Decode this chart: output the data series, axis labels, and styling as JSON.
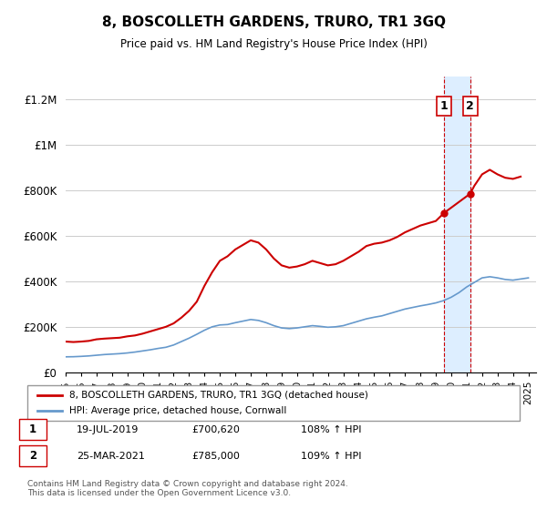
{
  "title": "8, BOSCOLLETH GARDENS, TRURO, TR1 3GQ",
  "subtitle": "Price paid vs. HM Land Registry's House Price Index (HPI)",
  "ylabel_ticks": [
    "£0",
    "£200K",
    "£400K",
    "£600K",
    "£800K",
    "£1M",
    "£1.2M"
  ],
  "ytick_values": [
    0,
    200000,
    400000,
    600000,
    800000,
    1000000,
    1200000
  ],
  "ylim": [
    0,
    1300000
  ],
  "xlim_start": 1995.0,
  "xlim_end": 2025.5,
  "red_line_color": "#cc0000",
  "blue_line_color": "#6699cc",
  "highlight_color": "#ddeeff",
  "marker_color": "#cc0000",
  "purchase1_x": 2019.54,
  "purchase1_y": 700620,
  "purchase2_x": 2021.23,
  "purchase2_y": 785000,
  "legend_label_red": "8, BOSCOLLETH GARDENS, TRURO, TR1 3GQ (detached house)",
  "legend_label_blue": "HPI: Average price, detached house, Cornwall",
  "annotation1_label": "1",
  "annotation2_label": "2",
  "table_row1": "1    19-JUL-2019    £700,620    108% ↑ HPI",
  "table_row2": "2    25-MAR-2021    £785,000    109% ↑ HPI",
  "footnote": "Contains HM Land Registry data © Crown copyright and database right 2024.\nThis data is licensed under the Open Government Licence v3.0.",
  "red_x": [
    1995.0,
    1995.5,
    1996.0,
    1996.5,
    1997.0,
    1997.5,
    1998.0,
    1998.5,
    1999.0,
    1999.5,
    2000.0,
    2000.5,
    2001.0,
    2001.5,
    2002.0,
    2002.5,
    2003.0,
    2003.5,
    2004.0,
    2004.5,
    2005.0,
    2005.5,
    2006.0,
    2006.5,
    2007.0,
    2007.5,
    2008.0,
    2008.5,
    2009.0,
    2009.5,
    2010.0,
    2010.5,
    2011.0,
    2011.5,
    2012.0,
    2012.5,
    2013.0,
    2013.5,
    2014.0,
    2014.5,
    2015.0,
    2015.5,
    2016.0,
    2016.5,
    2017.0,
    2017.5,
    2018.0,
    2018.5,
    2019.0,
    2019.54,
    2021.23,
    2021.5,
    2022.0,
    2022.5,
    2023.0,
    2023.5,
    2024.0,
    2024.5
  ],
  "red_y": [
    135000,
    133000,
    135000,
    138000,
    145000,
    148000,
    150000,
    152000,
    158000,
    162000,
    170000,
    180000,
    190000,
    200000,
    215000,
    240000,
    270000,
    310000,
    380000,
    440000,
    490000,
    510000,
    540000,
    560000,
    580000,
    570000,
    540000,
    500000,
    470000,
    460000,
    465000,
    475000,
    490000,
    480000,
    470000,
    475000,
    490000,
    510000,
    530000,
    555000,
    565000,
    570000,
    580000,
    595000,
    615000,
    630000,
    645000,
    655000,
    665000,
    700620,
    785000,
    820000,
    870000,
    890000,
    870000,
    855000,
    850000,
    860000
  ],
  "blue_x": [
    1995.0,
    1995.5,
    1996.0,
    1996.5,
    1997.0,
    1997.5,
    1998.0,
    1998.5,
    1999.0,
    1999.5,
    2000.0,
    2000.5,
    2001.0,
    2001.5,
    2002.0,
    2002.5,
    2003.0,
    2003.5,
    2004.0,
    2004.5,
    2005.0,
    2005.5,
    2006.0,
    2006.5,
    2007.0,
    2007.5,
    2008.0,
    2008.5,
    2009.0,
    2009.5,
    2010.0,
    2010.5,
    2011.0,
    2011.5,
    2012.0,
    2012.5,
    2013.0,
    2013.5,
    2014.0,
    2014.5,
    2015.0,
    2015.5,
    2016.0,
    2016.5,
    2017.0,
    2017.5,
    2018.0,
    2018.5,
    2019.0,
    2019.5,
    2020.0,
    2020.5,
    2021.0,
    2021.5,
    2022.0,
    2022.5,
    2023.0,
    2023.5,
    2024.0,
    2024.5,
    2025.0
  ],
  "blue_y": [
    68000,
    68500,
    70000,
    72000,
    75000,
    78000,
    80000,
    82000,
    85000,
    89000,
    94000,
    99000,
    105000,
    110000,
    120000,
    135000,
    150000,
    167000,
    185000,
    200000,
    208000,
    210000,
    218000,
    225000,
    232000,
    228000,
    218000,
    205000,
    195000,
    192000,
    195000,
    200000,
    205000,
    202000,
    198000,
    200000,
    205000,
    215000,
    225000,
    235000,
    242000,
    248000,
    258000,
    268000,
    278000,
    285000,
    292000,
    298000,
    305000,
    315000,
    330000,
    350000,
    375000,
    395000,
    415000,
    420000,
    415000,
    408000,
    405000,
    410000,
    415000
  ]
}
